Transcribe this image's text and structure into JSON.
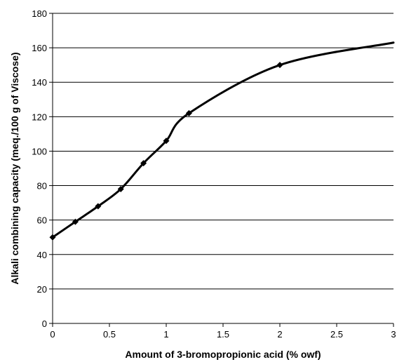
{
  "chart_data": {
    "type": "line",
    "title": "",
    "xlabel": "Amount of 3-bromopropionic acid (%  owf)",
    "ylabel": "Alkali combining capacity (meq./100 g of Viscose)",
    "xlim": [
      0,
      3
    ],
    "ylim": [
      0,
      180
    ],
    "x_ticks": [
      "0",
      "0.5",
      "1",
      "1.5",
      "2",
      "2.5",
      "3"
    ],
    "y_ticks": [
      "0",
      "20",
      "40",
      "60",
      "80",
      "100",
      "120",
      "140",
      "160",
      "180"
    ],
    "grid": "horizontal",
    "legend": "none",
    "series": [
      {
        "x": [
          0,
          0.2,
          0.4,
          0.6,
          0.8,
          1.0,
          1.2,
          2.0
        ],
        "y": [
          50,
          59,
          68,
          78,
          93,
          106,
          122,
          150
        ],
        "marker": "diamond"
      }
    ],
    "curve_extension": {
      "x": [
        3.0
      ],
      "y": [
        163
      ]
    },
    "line_color": "#000000",
    "grid_color": "#000000"
  }
}
